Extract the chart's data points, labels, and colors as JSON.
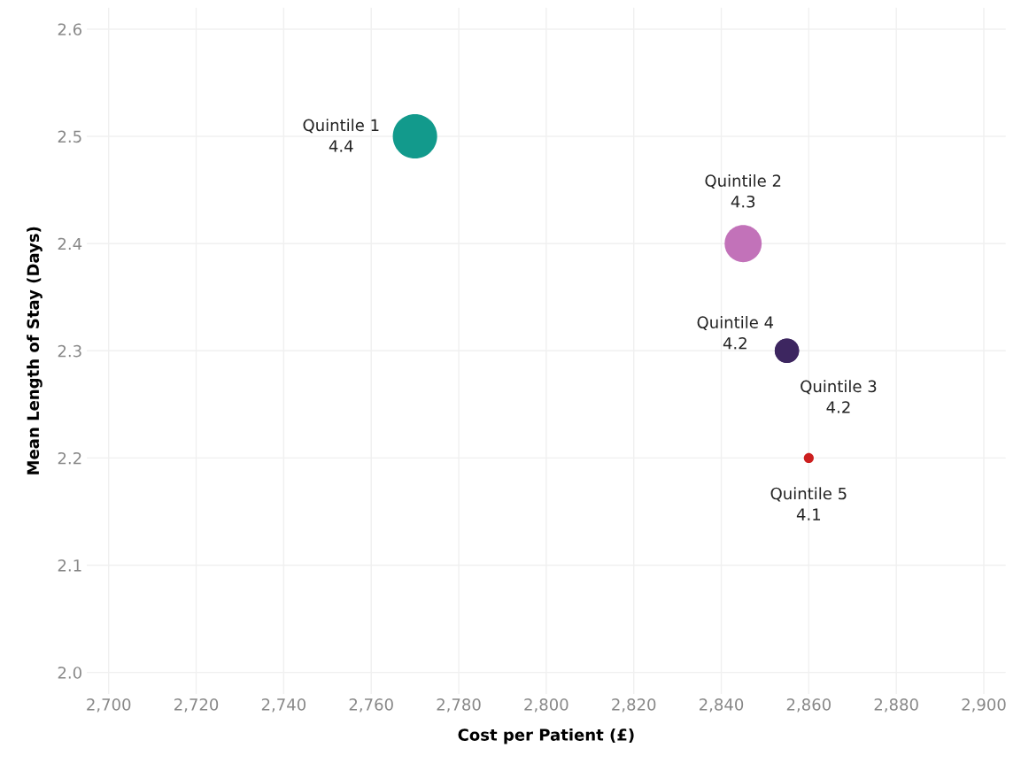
{
  "chart_data": {
    "type": "bubble",
    "xlabel": "Cost per Patient (£)",
    "ylabel": "Mean Length of Stay (Days)",
    "xlim": [
      2695,
      2905
    ],
    "ylim": [
      1.98,
      2.62
    ],
    "xticks": [
      {
        "value": 2700,
        "label": "2,700"
      },
      {
        "value": 2720,
        "label": "2,720"
      },
      {
        "value": 2740,
        "label": "2,740"
      },
      {
        "value": 2760,
        "label": "2,760"
      },
      {
        "value": 2780,
        "label": "2,780"
      },
      {
        "value": 2800,
        "label": "2,800"
      },
      {
        "value": 2820,
        "label": "2,820"
      },
      {
        "value": 2840,
        "label": "2,840"
      },
      {
        "value": 2860,
        "label": "2,860"
      },
      {
        "value": 2880,
        "label": "2,880"
      },
      {
        "value": 2900,
        "label": "2,900"
      }
    ],
    "yticks": [
      {
        "value": 2.0,
        "label": "2.0"
      },
      2.1,
      2.2,
      2.3,
      2.4,
      2.5,
      2.6
    ],
    "grid": true,
    "legend": false,
    "annotations": [
      "4.4",
      "4.3",
      "4.2",
      "4.2",
      "4.1"
    ],
    "series": [
      {
        "name": "Quintile 1",
        "color": "#129a8c",
        "x": [
          2770
        ],
        "values": [
          2.5
        ],
        "sizes": [
          1
        ]
      },
      {
        "name": "Quintile 2",
        "color": "#c272b9",
        "x": [
          2845
        ],
        "values": [
          2.4
        ],
        "sizes": [
          0.7
        ]
      },
      {
        "name": "Quintile 3",
        "color": "#3d2660",
        "x": [
          2855
        ],
        "values": [
          2.3
        ],
        "sizes": [
          0.3
        ]
      },
      {
        "name": "Quintile 4",
        "color": "#3d2660",
        "x": [
          2855
        ],
        "values": [
          2.3
        ],
        "sizes": [
          0.3
        ]
      },
      {
        "name": "Quintile 5",
        "color": "#cc1f1f",
        "x": [
          2860
        ],
        "values": [
          2.2
        ],
        "sizes": [
          0.05
        ]
      }
    ]
  }
}
